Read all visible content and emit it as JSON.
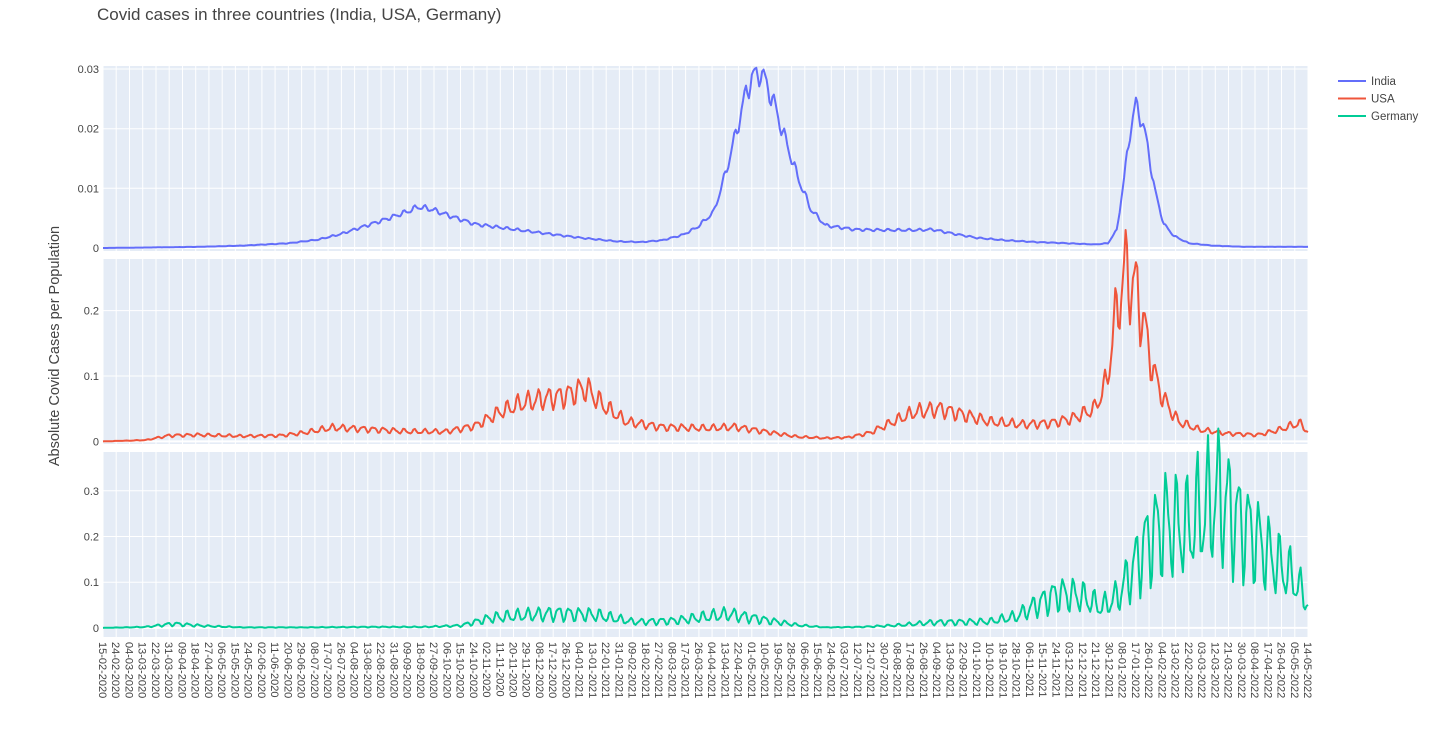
{
  "chart_data": {
    "type": "line",
    "title": "Covid cases in three countries (India, USA, Germany)",
    "ylabel": "Absolute Covid Cases per Population",
    "xlabel": "",
    "x_range": [
      "2020-02-15",
      "2022-05-14"
    ],
    "x_tick_labels": [
      "15-02-2020",
      "24-02-2020",
      "04-03-2020",
      "13-03-2020",
      "22-03-2020",
      "31-03-2020",
      "09-04-2020",
      "18-04-2020",
      "27-04-2020",
      "06-05-2020",
      "15-05-2020",
      "24-05-2020",
      "02-06-2020",
      "11-06-2020",
      "20-06-2020",
      "29-06-2020",
      "08-07-2020",
      "17-07-2020",
      "26-07-2020",
      "04-08-2020",
      "13-08-2020",
      "22-08-2020",
      "31-08-2020",
      "09-09-2020",
      "18-09-2020",
      "27-09-2020",
      "06-10-2020",
      "15-10-2020",
      "24-10-2020",
      "02-11-2020",
      "11-11-2020",
      "20-11-2020",
      "29-11-2020",
      "08-12-2020",
      "17-12-2020",
      "26-12-2020",
      "04-01-2021",
      "13-01-2021",
      "22-01-2021",
      "31-01-2021",
      "09-02-2021",
      "18-02-2021",
      "27-02-2021",
      "08-03-2021",
      "17-03-2021",
      "26-03-2021",
      "04-04-2021",
      "13-04-2021",
      "22-04-2021",
      "01-05-2021",
      "10-05-2021",
      "19-05-2021",
      "28-05-2021",
      "06-06-2021",
      "15-06-2021",
      "24-06-2021",
      "03-07-2021",
      "12-07-2021",
      "21-07-2021",
      "30-07-2021",
      "08-08-2021",
      "17-08-2021",
      "26-08-2021",
      "04-09-2021",
      "13-09-2021",
      "22-09-2021",
      "01-10-2021",
      "10-10-2021",
      "19-10-2021",
      "28-10-2021",
      "06-11-2021",
      "15-11-2021",
      "24-11-2021",
      "03-12-2021",
      "12-12-2021",
      "21-12-2021",
      "30-12-2021",
      "08-01-2022",
      "17-01-2022",
      "26-01-2022",
      "04-02-2022",
      "13-02-2022",
      "22-02-2022",
      "03-03-2022",
      "12-03-2022",
      "21-03-2022",
      "30-03-2022",
      "08-04-2022",
      "17-04-2022",
      "26-04-2022",
      "05-05-2022",
      "14-05-2022"
    ],
    "subplots": [
      {
        "series": "India",
        "color": "#636efa",
        "ylim": [
          -0.0005,
          0.0305
        ],
        "yticks": [
          0,
          0.01,
          0.02,
          0.03
        ],
        "ytick_labels": [
          "0",
          "0.01",
          "0.02",
          "0.03"
        ]
      },
      {
        "series": "USA",
        "color": "#ef553b",
        "ylim": [
          -0.004,
          0.279
        ],
        "yticks": [
          0,
          0.1,
          0.2
        ],
        "ytick_labels": [
          "0",
          "0.1",
          "0.2"
        ]
      },
      {
        "series": "Germany",
        "color": "#00cc96",
        "ylim": [
          -0.02,
          0.385
        ],
        "yticks": [
          0,
          0.1,
          0.2,
          0.3
        ],
        "ytick_labels": [
          "0",
          "0.1",
          "0.2",
          "0.3"
        ]
      }
    ],
    "legend": {
      "placement": "top-right",
      "entries": [
        "India",
        "USA",
        "Germany"
      ]
    },
    "grid": true,
    "series": [
      {
        "name": "India",
        "color": "#636efa",
        "x": [
          "2020-02-15",
          "2020-03-20",
          "2020-04-20",
          "2020-05-20",
          "2020-06-20",
          "2020-07-10",
          "2020-07-25",
          "2020-08-10",
          "2020-08-25",
          "2020-09-10",
          "2020-09-16",
          "2020-09-25",
          "2020-10-10",
          "2020-10-25",
          "2020-11-15",
          "2020-12-10",
          "2021-01-05",
          "2021-01-30",
          "2021-02-15",
          "2021-03-01",
          "2021-03-15",
          "2021-03-25",
          "2021-04-05",
          "2021-04-12",
          "2021-04-20",
          "2021-04-27",
          "2021-05-01",
          "2021-05-07",
          "2021-05-10",
          "2021-05-15",
          "2021-05-22",
          "2021-06-01",
          "2021-06-10",
          "2021-06-20",
          "2021-07-10",
          "2021-08-01",
          "2021-08-20",
          "2021-09-01",
          "2021-09-15",
          "2021-10-01",
          "2021-10-20",
          "2021-11-10",
          "2021-12-01",
          "2021-12-20",
          "2021-12-29",
          "2022-01-04",
          "2022-01-09",
          "2022-01-13",
          "2022-01-17",
          "2022-01-21",
          "2022-01-25",
          "2022-01-30",
          "2022-02-05",
          "2022-02-12",
          "2022-02-22",
          "2022-03-10",
          "2022-04-01",
          "2022-05-14"
        ],
        "y": [
          0.0,
          0.0001,
          0.0002,
          0.0004,
          0.0008,
          0.0014,
          0.0023,
          0.0036,
          0.0048,
          0.0062,
          0.0069,
          0.0065,
          0.0052,
          0.004,
          0.0033,
          0.0025,
          0.0017,
          0.0011,
          0.001,
          0.0013,
          0.0022,
          0.0035,
          0.006,
          0.0115,
          0.019,
          0.026,
          0.0285,
          0.0295,
          0.028,
          0.025,
          0.0195,
          0.012,
          0.0065,
          0.0038,
          0.0031,
          0.003,
          0.003,
          0.0031,
          0.0024,
          0.0017,
          0.0013,
          0.001,
          0.0008,
          0.0006,
          0.0008,
          0.003,
          0.0115,
          0.0195,
          0.024,
          0.0215,
          0.017,
          0.0095,
          0.004,
          0.002,
          0.0008,
          0.0004,
          0.0002,
          0.0002
        ]
      },
      {
        "name": "USA",
        "color": "#ef553b",
        "x": [
          "2020-02-15",
          "2020-03-15",
          "2020-03-31",
          "2020-04-20",
          "2020-05-20",
          "2020-06-15",
          "2020-06-30",
          "2020-07-20",
          "2020-08-10",
          "2020-09-10",
          "2020-10-05",
          "2020-10-25",
          "2020-11-10",
          "2020-11-25",
          "2020-12-10",
          "2020-12-25",
          "2021-01-08",
          "2021-01-20",
          "2021-02-05",
          "2021-03-01",
          "2021-04-01",
          "2021-04-20",
          "2021-05-10",
          "2021-06-01",
          "2021-06-20",
          "2021-07-05",
          "2021-07-20",
          "2021-08-05",
          "2021-08-20",
          "2021-09-05",
          "2021-09-20",
          "2021-10-10",
          "2021-11-01",
          "2021-11-20",
          "2021-12-05",
          "2021-12-20",
          "2021-12-28",
          "2022-01-02",
          "2022-01-06",
          "2022-01-10",
          "2022-01-14",
          "2022-01-18",
          "2022-01-24",
          "2022-01-30",
          "2022-02-06",
          "2022-02-15",
          "2022-03-01",
          "2022-03-20",
          "2022-04-10",
          "2022-04-25",
          "2022-05-08",
          "2022-05-14"
        ],
        "y": [
          0.0,
          0.002,
          0.009,
          0.01,
          0.008,
          0.009,
          0.013,
          0.021,
          0.019,
          0.015,
          0.015,
          0.024,
          0.044,
          0.058,
          0.065,
          0.07,
          0.082,
          0.055,
          0.03,
          0.022,
          0.02,
          0.022,
          0.015,
          0.007,
          0.005,
          0.006,
          0.013,
          0.03,
          0.045,
          0.05,
          0.042,
          0.03,
          0.026,
          0.028,
          0.035,
          0.05,
          0.09,
          0.17,
          0.225,
          0.262,
          0.242,
          0.228,
          0.16,
          0.098,
          0.06,
          0.03,
          0.018,
          0.012,
          0.01,
          0.018,
          0.028,
          0.015
        ]
      },
      {
        "name": "Germany",
        "color": "#00cc96",
        "x": [
          "2020-02-15",
          "2020-03-15",
          "2020-04-03",
          "2020-04-25",
          "2020-05-20",
          "2020-07-01",
          "2020-08-15",
          "2020-09-20",
          "2020-10-15",
          "2020-11-05",
          "2020-11-25",
          "2020-12-20",
          "2021-01-15",
          "2021-02-10",
          "2021-03-10",
          "2021-04-15",
          "2021-05-05",
          "2021-06-01",
          "2021-06-20",
          "2021-07-15",
          "2021-08-10",
          "2021-09-01",
          "2021-09-20",
          "2021-10-10",
          "2021-10-28",
          "2021-11-10",
          "2021-11-25",
          "2021-12-10",
          "2021-12-25",
          "2022-01-05",
          "2022-01-15",
          "2022-01-25",
          "2022-02-05",
          "2022-02-20",
          "2022-03-05",
          "2022-03-15",
          "2022-03-25",
          "2022-04-05",
          "2022-04-20",
          "2022-05-05",
          "2022-05-14"
        ],
        "y": [
          0.0,
          0.002,
          0.009,
          0.004,
          0.001,
          0.001,
          0.002,
          0.002,
          0.005,
          0.022,
          0.027,
          0.032,
          0.028,
          0.013,
          0.016,
          0.03,
          0.02,
          0.006,
          0.001,
          0.002,
          0.006,
          0.012,
          0.013,
          0.014,
          0.025,
          0.05,
          0.075,
          0.07,
          0.045,
          0.07,
          0.13,
          0.19,
          0.23,
          0.215,
          0.26,
          0.29,
          0.24,
          0.21,
          0.15,
          0.105,
          0.055
        ]
      }
    ]
  }
}
